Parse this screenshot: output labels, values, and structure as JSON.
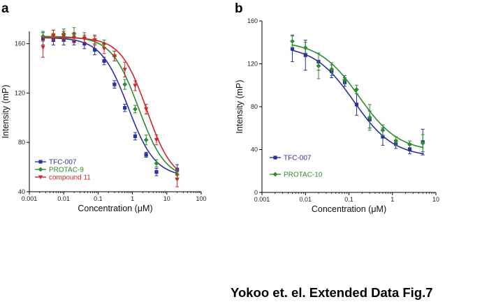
{
  "caption": "Yokoo et. el. Extended Data Fig.7",
  "chart_data": [
    {
      "panel": "a",
      "type": "line",
      "xscale": "log",
      "xlim": [
        0.001,
        100
      ],
      "ylim": [
        40,
        170
      ],
      "xticks": [
        0.001,
        0.01,
        0.1,
        1,
        10,
        100
      ],
      "xtick_labels": [
        "0.001",
        "0.01",
        "0.1",
        "1",
        "10",
        "100"
      ],
      "yticks": [
        40,
        80,
        120,
        160
      ],
      "ytick_labels": [
        "40",
        "80",
        "120",
        "160"
      ],
      "xlabel": "Concentration (μM)",
      "ylabel": "Intensity (mP)",
      "legend_position": "bottom-left",
      "series": [
        {
          "name": "TFC-007",
          "color": "#2b2fa5",
          "marker": "square",
          "x": [
            0.0025,
            0.005,
            0.01,
            0.02,
            0.04,
            0.08,
            0.15,
            0.3,
            0.6,
            1.2,
            2.5,
            5,
            20
          ],
          "y": [
            164,
            163,
            163,
            162,
            160,
            155,
            146,
            127,
            108,
            85,
            70,
            56,
            58
          ],
          "err": [
            5,
            4,
            4,
            3,
            4,
            4,
            3,
            3,
            3,
            3,
            2,
            3,
            4
          ],
          "fit": {
            "bottom": 52,
            "top": 165,
            "ec50": 0.75,
            "hill": 1.1
          }
        },
        {
          "name": "PROTAC-9",
          "color": "#2e8b2e",
          "marker": "diamond",
          "x": [
            0.0025,
            0.005,
            0.01,
            0.02,
            0.04,
            0.08,
            0.15,
            0.3,
            0.6,
            1.2,
            2.5,
            5,
            20
          ],
          "y": [
            166,
            167,
            168,
            168,
            165,
            163,
            160,
            150,
            127,
            107,
            82,
            63,
            54
          ],
          "err": [
            4,
            4,
            4,
            5,
            4,
            3,
            3,
            4,
            4,
            3,
            4,
            3,
            4
          ],
          "fit": {
            "bottom": 50,
            "top": 166,
            "ec50": 1.5,
            "hill": 1.1
          }
        },
        {
          "name": "compound 11",
          "color": "#d42626",
          "marker": "triangle-down",
          "x": [
            0.0025,
            0.005,
            0.01,
            0.02,
            0.04,
            0.08,
            0.15,
            0.3,
            0.6,
            1.2,
            2.5,
            5,
            20
          ],
          "y": [
            157,
            167,
            166,
            165,
            164,
            163,
            156,
            150,
            139,
            126,
            107,
            82,
            50
          ],
          "err": [
            8,
            4,
            4,
            4,
            3,
            4,
            4,
            4,
            6,
            4,
            4,
            4,
            6
          ],
          "fit": {
            "bottom": 48,
            "top": 165,
            "ec50": 2.6,
            "hill": 1.15
          }
        }
      ]
    },
    {
      "panel": "b",
      "type": "line",
      "xscale": "log",
      "xlim": [
        0.001,
        10
      ],
      "ylim": [
        0,
        160
      ],
      "xticks": [
        0.001,
        0.01,
        0.1,
        1,
        10
      ],
      "xtick_labels": [
        "0.001",
        "0.01",
        "0.1",
        "1",
        "10"
      ],
      "yticks": [
        0,
        40,
        80,
        120,
        160
      ],
      "ytick_labels": [
        "0",
        "40",
        "80",
        "120",
        "160"
      ],
      "xlabel": "Concentration (μM)",
      "ylabel": "Intensity (mP)",
      "legend_position": "bottom-left",
      "series": [
        {
          "name": "TFC-007",
          "color": "#2b2fa5",
          "marker": "square",
          "x": [
            0.005,
            0.01,
            0.02,
            0.04,
            0.08,
            0.15,
            0.3,
            0.6,
            1.2,
            2.5,
            5
          ],
          "y": [
            134,
            128,
            122,
            113,
            103,
            82,
            68,
            52,
            45,
            40,
            47
          ],
          "err": [
            12,
            14,
            8,
            6,
            4,
            10,
            8,
            8,
            4,
            4,
            12
          ],
          "fit": {
            "bottom": 33,
            "top": 137,
            "ec50": 0.13,
            "hill": 0.95
          }
        },
        {
          "name": "PROTAC-10",
          "color": "#2e8b2e",
          "marker": "diamond",
          "x": [
            0.005,
            0.01,
            0.02,
            0.04,
            0.08,
            0.15,
            0.3,
            0.6,
            1.2,
            2.5,
            5
          ],
          "y": [
            141,
            135,
            118,
            115,
            105,
            96,
            70,
            58,
            48,
            45,
            46
          ],
          "err": [
            6,
            5,
            12,
            6,
            4,
            4,
            12,
            5,
            4,
            3,
            8
          ],
          "fit": {
            "bottom": 38,
            "top": 141,
            "ec50": 0.17,
            "hill": 0.95
          }
        }
      ]
    }
  ]
}
